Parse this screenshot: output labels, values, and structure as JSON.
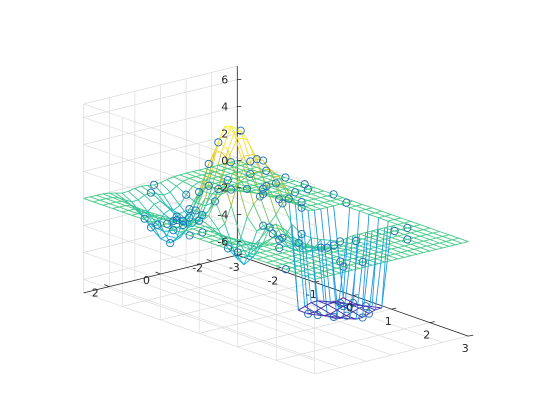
{
  "chart_data": {
    "type": "surface-mesh-3d",
    "grid": {
      "x_range": [
        -3,
        3
      ],
      "y_range": [
        -3,
        3
      ],
      "resolution": 25
    },
    "xlim": [
      -3,
      3
    ],
    "ylim": [
      -3,
      3
    ],
    "zlim": [
      -7,
      7
    ],
    "x_ticks": [
      "-3",
      "-2",
      "-1",
      "0",
      "1",
      "2",
      "3"
    ],
    "y_ticks": [
      "-2",
      "0",
      "2"
    ],
    "z_ticks": [
      "6",
      "4",
      "2",
      "0",
      "-2",
      "-4",
      "-6"
    ],
    "z_range_plotted": [
      -6.5,
      6.6
    ],
    "colormap": [
      "#3e26a8",
      "#2f7ef5",
      "#13b6cf",
      "#48cb86",
      "#bcbc33",
      "#fad73a",
      "#f9fb15"
    ],
    "markers": {
      "shape": "circle",
      "edge_color": "#1f6fb4",
      "count": 85
    },
    "grid_on": true
  }
}
